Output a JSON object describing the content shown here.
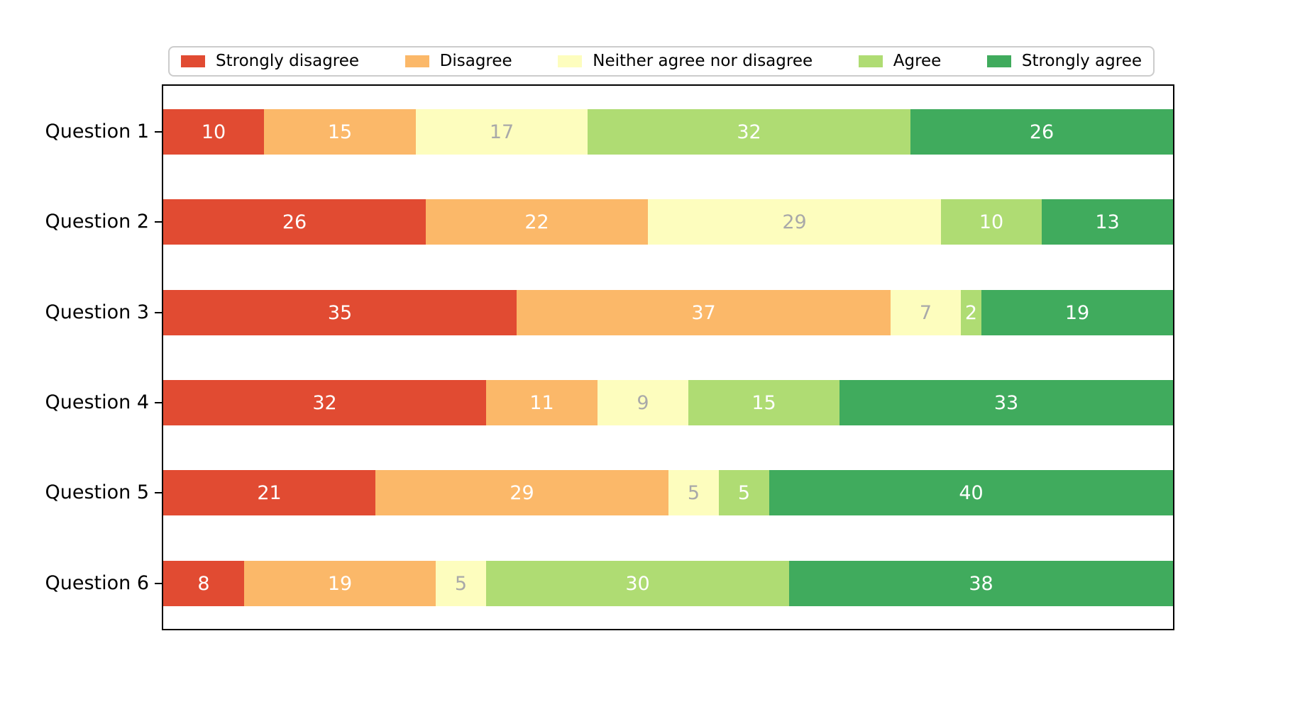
{
  "chart_data": {
    "type": "bar",
    "orientation": "horizontal",
    "stacked": true,
    "title": "",
    "xlabel": "",
    "ylabel": "",
    "xlim": [
      0,
      100
    ],
    "x_axis_visible": false,
    "grid": false,
    "legend_position": "upper center (above plot)",
    "categories": [
      "Question 1",
      "Question 2",
      "Question 3",
      "Question 4",
      "Question 5",
      "Question 6"
    ],
    "series": [
      {
        "name": "Strongly disagree",
        "color": "#e14b32",
        "label_color": "#ffffff",
        "values": [
          10,
          26,
          35,
          32,
          21,
          8
        ]
      },
      {
        "name": "Disagree",
        "color": "#fbb869",
        "label_color": "#ffffff",
        "values": [
          15,
          22,
          37,
          11,
          29,
          19
        ]
      },
      {
        "name": "Neither agree nor disagree",
        "color": "#fdfdbe",
        "label_color": "#a9a9a9",
        "values": [
          17,
          29,
          7,
          9,
          5,
          5
        ]
      },
      {
        "name": "Agree",
        "color": "#afdc73",
        "label_color": "#ffffff",
        "values": [
          32,
          10,
          2,
          15,
          5,
          30
        ]
      },
      {
        "name": "Strongly agree",
        "color": "#40ab5d",
        "label_color": "#ffffff",
        "values": [
          26,
          13,
          19,
          33,
          40,
          38
        ]
      }
    ],
    "colors": {
      "spine": "#000000",
      "legend_border": "#cccccc",
      "background": "#ffffff",
      "label_on_dark": "#ffffff",
      "label_on_light": "#a9a9a9"
    }
  }
}
